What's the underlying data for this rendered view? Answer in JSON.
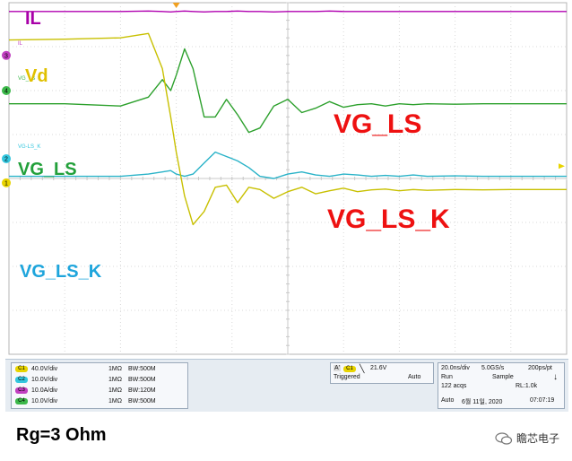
{
  "chart_data": {
    "type": "line",
    "title": "",
    "xlabel": "",
    "ylabel": "",
    "grid": true,
    "divisions": {
      "x": 10,
      "y": 8
    },
    "x_unit": "ns",
    "x": [
      0,
      20,
      40,
      50,
      55,
      58,
      60,
      63,
      66,
      70,
      74,
      78,
      82,
      86,
      90,
      95,
      100,
      105,
      110,
      115,
      120,
      125,
      130,
      135,
      140,
      145,
      150,
      160,
      170,
      180,
      190,
      200
    ],
    "series": [
      {
        "name": "IL",
        "color": "#b000b0",
        "values": [
          0.2,
          0.2,
          0.2,
          0.19,
          0.2,
          0.21,
          0.2,
          0.19,
          0.2,
          0.21,
          0.2,
          0.2,
          0.19,
          0.2,
          0.2,
          0.21,
          0.2,
          0.2,
          0.2,
          0.19,
          0.2,
          0.2,
          0.2,
          0.2,
          0.2,
          0.2,
          0.2,
          0.2,
          0.2,
          0.2,
          0.2,
          0.2
        ]
      },
      {
        "name": "VG_LS",
        "color": "#2ca02c",
        "values": [
          2.3,
          2.3,
          2.35,
          2.15,
          1.75,
          2.0,
          1.65,
          1.05,
          1.5,
          2.6,
          2.6,
          2.2,
          2.55,
          2.95,
          2.85,
          2.35,
          2.2,
          2.5,
          2.4,
          2.25,
          2.38,
          2.32,
          2.3,
          2.35,
          2.3,
          2.32,
          2.3,
          2.31,
          2.3,
          2.3,
          2.3,
          2.3
        ]
      },
      {
        "name": "VG_LS_K",
        "color": "#2ab3c8",
        "values": [
          3.95,
          3.95,
          3.95,
          3.9,
          3.85,
          3.82,
          3.9,
          3.95,
          3.9,
          3.65,
          3.4,
          3.5,
          3.6,
          3.75,
          3.95,
          4.0,
          3.9,
          3.85,
          3.92,
          3.95,
          3.9,
          3.92,
          3.95,
          3.93,
          3.95,
          3.92,
          3.95,
          3.94,
          3.95,
          3.95,
          3.95,
          3.95
        ]
      },
      {
        "name": "Vd",
        "color": "#c8c000",
        "values": [
          0.85,
          0.83,
          0.8,
          0.7,
          1.5,
          2.6,
          3.4,
          4.4,
          5.05,
          4.75,
          4.2,
          4.15,
          4.55,
          4.2,
          4.25,
          4.45,
          4.3,
          4.2,
          4.35,
          4.28,
          4.22,
          4.3,
          4.26,
          4.24,
          4.28,
          4.25,
          4.27,
          4.25,
          4.26,
          4.25,
          4.25,
          4.25
        ]
      }
    ]
  },
  "labels": {
    "il": "IL",
    "vd": "Vd",
    "vg_ls_left": "VG_LS",
    "vg_ls_k_left": "VG_LS_K",
    "vg_ls_right": "VG_LS",
    "vg_ls_k_right": "VG_LS_K"
  },
  "markers": {
    "ch3": "3",
    "ch4": "4",
    "ch2": "2",
    "ch1": "1",
    "il_small": "IL",
    "vgls_small": "VG_LS",
    "vglsk_small": "VG-LS_K"
  },
  "channels": [
    {
      "badge": "C1",
      "color": "#e8d400",
      "scale": "40.0V/div",
      "imp": "1MΩ",
      "bw": "BW:500M"
    },
    {
      "badge": "C2",
      "color": "#33c6de",
      "scale": "10.0V/div",
      "imp": "1MΩ",
      "bw": "BW:500M"
    },
    {
      "badge": "C3",
      "color": "#c040c0",
      "scale": "10.0A/div",
      "imp": "1MΩ",
      "bw": "BW:120M"
    },
    {
      "badge": "C4",
      "color": "#3cb84a",
      "scale": "10.0V/div",
      "imp": "1MΩ",
      "bw": "BW:500M"
    }
  ],
  "trigger": {
    "a": "A'",
    "ch": "C1",
    "level": "21.6V",
    "state": "Triggered",
    "mode": "Auto"
  },
  "timebase": {
    "div": "20.0ns/div",
    "rate": "5.0GS/s",
    "res": "200ps/pt",
    "run": "Run",
    "sample": "Sample",
    "acqs": "122 acqs",
    "rl": "RL:1.0k",
    "auto": "Auto",
    "date": "6월 11일, 2020",
    "time": "07:07:19"
  },
  "caption": "Rg=3 Ohm",
  "brand": "瞻芯电子"
}
